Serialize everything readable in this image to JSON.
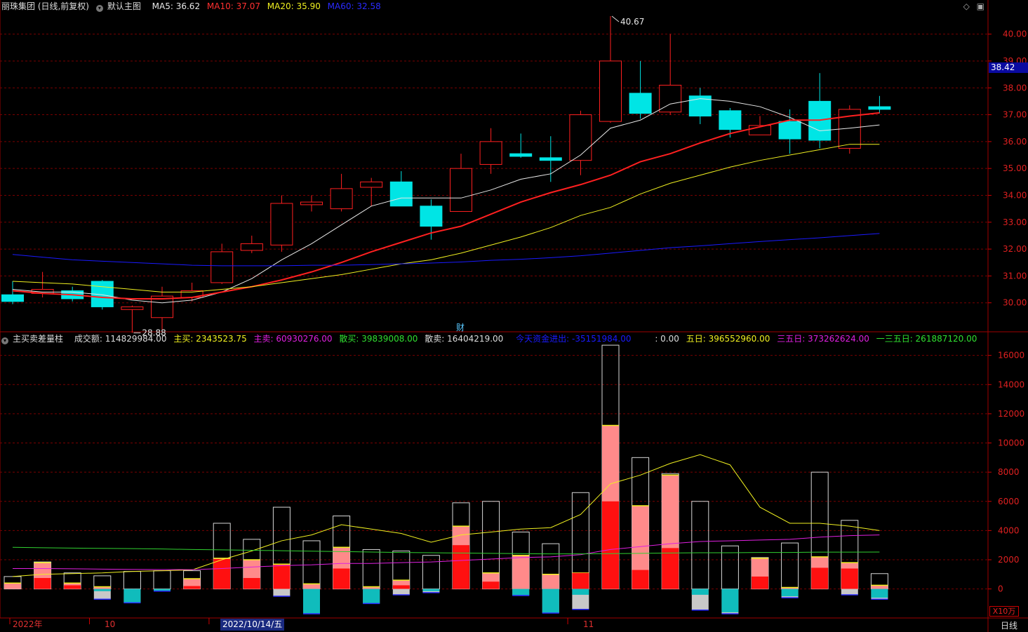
{
  "main_header": {
    "stock_label": "丽珠集团 (日线,前复权)",
    "chart_name": "默认主图",
    "ma5": "MA5: 36.62",
    "ma10": "MA10: 37.07",
    "ma20": "MA20: 35.90",
    "ma60": "MA60: 32.58"
  },
  "price_badge": "38.42",
  "volume_header": {
    "indicator_name": "主买卖差量柱",
    "turnover": "成交额: 114829984.00",
    "main_buy": "主买: 2343523.75",
    "main_sell": "主卖: 60930276.00",
    "retail_buy": "散买: 39839008.00",
    "retail_sell": "散卖: 16404219.00",
    "net_flow_label": "今天资金进出: -35151984.00",
    "zero": ": 0.00",
    "five_day": "五日: 396552960.00",
    "thirty_five_day": "三五日: 373262624.00",
    "one_three_five_day": "一三五日: 261887120.00"
  },
  "x_labels": {
    "year": "2022年",
    "oct": "10",
    "cursor_date": "2022/10/14/五",
    "nov": "11"
  },
  "unit_label": "X10万",
  "period_label": "日线",
  "finance_marker": "财",
  "colors": {
    "up": "#ff2020",
    "down": "#00e5e5",
    "ma5": "#e8e8e8",
    "ma10": "#ff2020",
    "ma20": "#f0f020",
    "ma60": "#1a1aff",
    "grid": "#7a0000"
  },
  "chart_data": [
    {
      "type": "candlestick",
      "title": "丽珠集团 (日线,前复权)",
      "ylim": [
        29.0,
        40.8
      ],
      "y_ticks": [
        30.0,
        31.0,
        32.0,
        33.0,
        34.0,
        35.0,
        36.0,
        37.0,
        38.0,
        39.0,
        40.0
      ],
      "candles": [
        {
          "o": 30.3,
          "h": 30.8,
          "l": 29.95,
          "c": 30.05
        },
        {
          "o": 30.35,
          "h": 31.15,
          "l": 30.2,
          "c": 30.5
        },
        {
          "o": 30.45,
          "h": 30.6,
          "l": 30.05,
          "c": 30.15
        },
        {
          "o": 30.8,
          "h": 30.85,
          "l": 29.75,
          "c": 29.85
        },
        {
          "o": 29.75,
          "h": 29.9,
          "l": 28.88,
          "c": 29.85
        },
        {
          "o": 29.45,
          "h": 30.6,
          "l": 29.0,
          "c": 30.25
        },
        {
          "o": 30.2,
          "h": 30.75,
          "l": 30.05,
          "c": 30.45
        },
        {
          "o": 30.75,
          "h": 32.2,
          "l": 30.7,
          "c": 31.9
        },
        {
          "o": 31.95,
          "h": 32.5,
          "l": 31.85,
          "c": 32.2
        },
        {
          "o": 32.15,
          "h": 34.0,
          "l": 31.9,
          "c": 33.7
        },
        {
          "o": 33.65,
          "h": 34.0,
          "l": 33.4,
          "c": 33.75
        },
        {
          "o": 33.5,
          "h": 34.8,
          "l": 33.4,
          "c": 34.25
        },
        {
          "o": 34.3,
          "h": 34.65,
          "l": 33.6,
          "c": 34.5
        },
        {
          "o": 34.5,
          "h": 34.9,
          "l": 33.6,
          "c": 33.6
        },
        {
          "o": 33.6,
          "h": 33.85,
          "l": 32.35,
          "c": 32.85
        },
        {
          "o": 33.4,
          "h": 35.55,
          "l": 33.4,
          "c": 35.0
        },
        {
          "o": 35.15,
          "h": 36.5,
          "l": 34.8,
          "c": 36.0
        },
        {
          "o": 35.55,
          "h": 36.3,
          "l": 35.4,
          "c": 35.45
        },
        {
          "o": 35.4,
          "h": 36.2,
          "l": 34.5,
          "c": 35.3
        },
        {
          "o": 35.3,
          "h": 37.15,
          "l": 34.75,
          "c": 37.0
        },
        {
          "o": 36.75,
          "h": 40.67,
          "l": 36.7,
          "c": 39.0
        },
        {
          "o": 37.8,
          "h": 39.0,
          "l": 36.85,
          "c": 37.05
        },
        {
          "o": 37.1,
          "h": 40.0,
          "l": 37.0,
          "c": 38.1
        },
        {
          "o": 37.7,
          "h": 38.0,
          "l": 36.65,
          "c": 36.95
        },
        {
          "o": 37.15,
          "h": 37.25,
          "l": 36.15,
          "c": 36.45
        },
        {
          "o": 36.25,
          "h": 36.95,
          "l": 36.25,
          "c": 36.6
        },
        {
          "o": 36.75,
          "h": 37.2,
          "l": 35.55,
          "c": 36.1
        },
        {
          "o": 37.5,
          "h": 38.55,
          "l": 35.75,
          "c": 36.05
        },
        {
          "o": 35.75,
          "h": 37.35,
          "l": 35.55,
          "c": 37.2
        },
        {
          "o": 37.3,
          "h": 37.7,
          "l": 37.05,
          "c": 37.2
        }
      ],
      "ma": [
        {
          "name": "MA5",
          "values": [
            30.5,
            30.4,
            30.4,
            30.3,
            30.1,
            30.0,
            30.1,
            30.4,
            30.9,
            31.6,
            32.2,
            32.9,
            33.6,
            33.9,
            33.9,
            33.9,
            34.2,
            34.6,
            34.8,
            35.5,
            36.5,
            36.8,
            37.4,
            37.6,
            37.5,
            37.3,
            36.9,
            36.4,
            36.5,
            36.62
          ]
        },
        {
          "name": "MA10",
          "values": [
            30.45,
            30.35,
            30.3,
            30.2,
            30.15,
            30.15,
            30.2,
            30.4,
            30.6,
            30.85,
            31.15,
            31.5,
            31.9,
            32.25,
            32.6,
            32.85,
            33.3,
            33.75,
            34.1,
            34.4,
            34.75,
            35.25,
            35.55,
            35.95,
            36.3,
            36.55,
            36.8,
            36.8,
            36.95,
            37.07
          ]
        },
        {
          "name": "MA20",
          "values": [
            30.8,
            30.75,
            30.7,
            30.6,
            30.5,
            30.4,
            30.4,
            30.5,
            30.6,
            30.75,
            30.9,
            31.05,
            31.25,
            31.45,
            31.6,
            31.85,
            32.15,
            32.45,
            32.8,
            33.25,
            33.55,
            34.05,
            34.45,
            34.75,
            35.05,
            35.3,
            35.5,
            35.7,
            35.9,
            35.9
          ]
        },
        {
          "name": "MA60",
          "values": [
            31.8,
            31.7,
            31.6,
            31.55,
            31.5,
            31.45,
            31.4,
            31.38,
            31.38,
            31.38,
            31.4,
            31.4,
            31.42,
            31.45,
            31.48,
            31.52,
            31.58,
            31.62,
            31.68,
            31.75,
            31.85,
            31.95,
            32.05,
            32.12,
            32.2,
            32.28,
            32.35,
            32.42,
            32.5,
            32.58
          ]
        }
      ],
      "annotations": [
        {
          "text": "40.67",
          "index": 20,
          "value": 40.67
        },
        {
          "text": "28.88",
          "index": 4,
          "value": 28.88
        }
      ]
    },
    {
      "type": "bar",
      "title": "主买卖差量柱",
      "ylim": [
        -1700,
        16800
      ],
      "y_ticks": [
        0,
        2000,
        4000,
        6000,
        8000,
        10000,
        12000,
        14000,
        16000
      ],
      "total": [
        850,
        1850,
        1100,
        900,
        1200,
        1250,
        1250,
        4500,
        3400,
        5600,
        3300,
        5000,
        2700,
        2600,
        2300,
        5900,
        6000,
        3900,
        3100,
        6600,
        16700,
        9000,
        7900,
        6000,
        2950,
        2150,
        3150,
        8000,
        4700,
        1050
      ],
      "buy": [
        400,
        1800,
        400,
        150,
        0,
        0,
        700,
        2100,
        2000,
        1700,
        350,
        2850,
        150,
        600,
        0,
        4300,
        1100,
        2300,
        1000,
        1100,
        11200,
        5700,
        7800,
        0,
        0,
        2100,
        100,
        2200,
        1800,
        250
      ],
      "buy_main": [
        0,
        750,
        250,
        0,
        0,
        0,
        200,
        2050,
        750,
        1650,
        0,
        1400,
        0,
        250,
        0,
        3000,
        500,
        0,
        0,
        1100,
        6000,
        1300,
        2800,
        0,
        0,
        850,
        0,
        1450,
        1400,
        0
      ],
      "sell": [
        0,
        0,
        0,
        -700,
        -950,
        -150,
        0,
        0,
        0,
        -500,
        -1700,
        0,
        -1000,
        -400,
        -250,
        0,
        0,
        -450,
        -1650,
        -1400,
        0,
        0,
        0,
        -1450,
        -1700,
        0,
        -600,
        0,
        -400,
        -700
      ],
      "sell_main": [
        0,
        0,
        0,
        -150,
        -950,
        -150,
        0,
        0,
        0,
        0,
        -1700,
        0,
        -1000,
        0,
        -150,
        0,
        0,
        -450,
        -1650,
        -400,
        0,
        0,
        0,
        -400,
        -1600,
        0,
        -500,
        0,
        0,
        -600
      ],
      "lines": [
        {
          "name": "五日",
          "values": [
            850,
            1000,
            1050,
            1100,
            1200,
            1250,
            1300,
            2000,
            2600,
            3300,
            3700,
            4400,
            4100,
            3800,
            3200,
            3700,
            3900,
            4100,
            4200,
            5100,
            7200,
            7800,
            8600,
            9200,
            8500,
            5600,
            4500,
            4500,
            4300,
            4000
          ]
        },
        {
          "name": "三五日",
          "values": [
            1400,
            1400,
            1380,
            1360,
            1340,
            1330,
            1320,
            1400,
            1500,
            1600,
            1650,
            1750,
            1750,
            1800,
            1850,
            1950,
            2050,
            2150,
            2200,
            2350,
            2700,
            2900,
            3100,
            3250,
            3300,
            3350,
            3400,
            3550,
            3650,
            3700
          ]
        },
        {
          "name": "一三五日",
          "values": [
            2850,
            2820,
            2800,
            2780,
            2760,
            2740,
            2700,
            2680,
            2650,
            2620,
            2590,
            2560,
            2530,
            2500,
            2480,
            2460,
            2440,
            2420,
            2400,
            2400,
            2420,
            2440,
            2460,
            2480,
            2480,
            2500,
            2500,
            2520,
            2520,
            2530
          ]
        }
      ]
    }
  ]
}
